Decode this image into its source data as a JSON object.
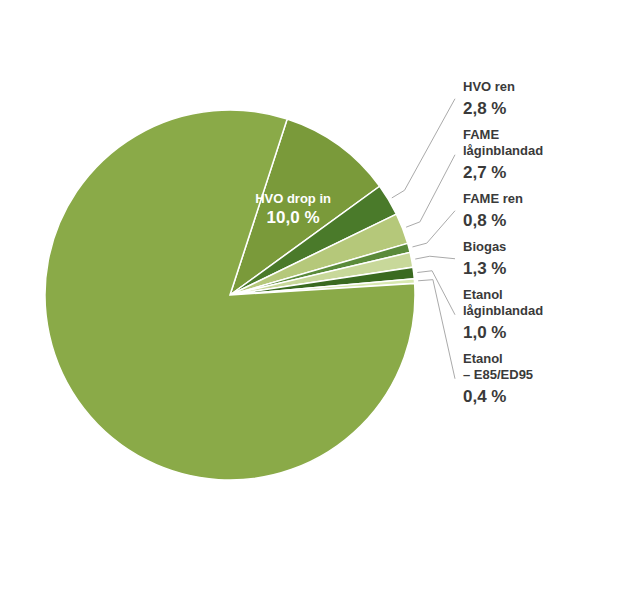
{
  "chart_data": {
    "type": "pie",
    "categories": [
      "HVO drop in",
      "HVO ren",
      "FAME\nlåginblandad",
      "FAME ren",
      "Biogas",
      "Etanol\nlåginblandad",
      "Etanol\n– E85/ED95",
      null
    ],
    "values": [
      10.0,
      2.8,
      2.7,
      0.8,
      1.3,
      1.0,
      0.4,
      81.0
    ],
    "value_labels": [
      "10,0 %",
      "2,8 %",
      "2,7 %",
      "0,8 %",
      "1,3 %",
      "1,0 %",
      "0,4 %",
      null
    ],
    "colors": [
      "#7a9a3a",
      "#4a7a2a",
      "#b5c87a",
      "#5a8a3a",
      "#c8d89a",
      "#3a6a20",
      "#d8e8b0",
      "#8aaa48"
    ],
    "data_labels": true
  }
}
